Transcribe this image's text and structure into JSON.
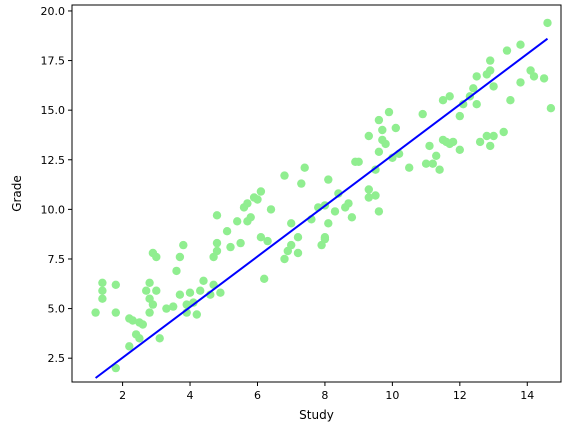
{
  "chart_data": {
    "type": "scatter",
    "title": "",
    "xlabel": "Study",
    "ylabel": "Grade",
    "xlim": [
      0.5,
      15.0
    ],
    "ylim": [
      1.3,
      20.3
    ],
    "xticks": [
      2,
      4,
      6,
      8,
      10,
      12,
      14
    ],
    "yticks": [
      2.5,
      5.0,
      7.5,
      10.0,
      12.5,
      15.0,
      17.5,
      20.0
    ],
    "xtick_labels": [
      "2",
      "4",
      "6",
      "8",
      "10",
      "12",
      "14"
    ],
    "ytick_labels": [
      "2.5",
      "5.0",
      "7.5",
      "10.0",
      "12.5",
      "15.0",
      "17.5",
      "20.0"
    ],
    "grid": false,
    "legend": false,
    "colors": {
      "points": "#90ee90",
      "line": "#0000ff",
      "axes": "#000000"
    },
    "points": [
      [
        1.2,
        4.8
      ],
      [
        1.4,
        6.3
      ],
      [
        1.4,
        5.9
      ],
      [
        1.4,
        5.5
      ],
      [
        1.8,
        6.2
      ],
      [
        1.8,
        4.8
      ],
      [
        1.8,
        2.0
      ],
      [
        2.2,
        4.5
      ],
      [
        2.3,
        4.4
      ],
      [
        2.2,
        3.1
      ],
      [
        2.4,
        3.7
      ],
      [
        2.5,
        3.5
      ],
      [
        2.5,
        4.3
      ],
      [
        2.6,
        4.2
      ],
      [
        2.7,
        5.9
      ],
      [
        2.8,
        6.3
      ],
      [
        2.8,
        5.5
      ],
      [
        2.8,
        4.8
      ],
      [
        2.9,
        7.8
      ],
      [
        3.0,
        7.6
      ],
      [
        2.9,
        5.2
      ],
      [
        3.0,
        5.9
      ],
      [
        3.1,
        3.5
      ],
      [
        3.3,
        5.0
      ],
      [
        3.5,
        5.1
      ],
      [
        3.6,
        6.9
      ],
      [
        3.7,
        7.6
      ],
      [
        3.8,
        8.2
      ],
      [
        3.7,
        5.7
      ],
      [
        3.9,
        5.2
      ],
      [
        3.9,
        4.8
      ],
      [
        4.0,
        5.8
      ],
      [
        4.1,
        5.3
      ],
      [
        4.2,
        4.7
      ],
      [
        4.3,
        5.9
      ],
      [
        4.4,
        6.4
      ],
      [
        4.6,
        5.7
      ],
      [
        4.7,
        6.2
      ],
      [
        4.7,
        7.6
      ],
      [
        4.8,
        8.3
      ],
      [
        4.8,
        9.7
      ],
      [
        4.8,
        7.9
      ],
      [
        4.9,
        5.8
      ],
      [
        5.1,
        8.9
      ],
      [
        5.2,
        8.1
      ],
      [
        5.4,
        9.4
      ],
      [
        5.5,
        8.3
      ],
      [
        5.6,
        10.1
      ],
      [
        5.7,
        9.4
      ],
      [
        5.7,
        10.3
      ],
      [
        5.8,
        9.6
      ],
      [
        5.9,
        10.6
      ],
      [
        6.0,
        10.5
      ],
      [
        6.1,
        10.9
      ],
      [
        6.1,
        8.6
      ],
      [
        6.2,
        6.5
      ],
      [
        6.3,
        8.4
      ],
      [
        6.4,
        10.0
      ],
      [
        6.8,
        11.7
      ],
      [
        6.8,
        7.5
      ],
      [
        6.9,
        7.9
      ],
      [
        7.0,
        8.2
      ],
      [
        7.0,
        9.3
      ],
      [
        7.2,
        8.6
      ],
      [
        7.2,
        7.8
      ],
      [
        7.3,
        11.3
      ],
      [
        7.4,
        12.1
      ],
      [
        7.6,
        9.5
      ],
      [
        7.8,
        10.1
      ],
      [
        7.9,
        8.2
      ],
      [
        8.0,
        8.6
      ],
      [
        8.0,
        8.5
      ],
      [
        8.0,
        10.2
      ],
      [
        8.1,
        11.5
      ],
      [
        8.1,
        9.3
      ],
      [
        8.3,
        9.9
      ],
      [
        8.4,
        10.8
      ],
      [
        8.6,
        10.1
      ],
      [
        8.7,
        10.3
      ],
      [
        8.8,
        9.6
      ],
      [
        8.9,
        12.4
      ],
      [
        9.0,
        12.4
      ],
      [
        9.3,
        10.6
      ],
      [
        9.3,
        11.0
      ],
      [
        9.3,
        13.7
      ],
      [
        9.5,
        12.0
      ],
      [
        9.5,
        10.7
      ],
      [
        9.6,
        9.9
      ],
      [
        9.6,
        14.5
      ],
      [
        9.6,
        12.9
      ],
      [
        9.7,
        14.0
      ],
      [
        9.7,
        13.5
      ],
      [
        9.8,
        13.3
      ],
      [
        9.9,
        14.9
      ],
      [
        10.0,
        12.6
      ],
      [
        10.1,
        14.1
      ],
      [
        10.2,
        12.8
      ],
      [
        10.5,
        12.1
      ],
      [
        10.9,
        14.8
      ],
      [
        11.0,
        12.3
      ],
      [
        11.1,
        13.2
      ],
      [
        11.2,
        12.3
      ],
      [
        11.3,
        12.7
      ],
      [
        11.4,
        12.0
      ],
      [
        11.5,
        13.5
      ],
      [
        11.5,
        15.5
      ],
      [
        11.6,
        13.4
      ],
      [
        11.7,
        15.7
      ],
      [
        11.7,
        13.3
      ],
      [
        11.8,
        13.4
      ],
      [
        12.0,
        13.0
      ],
      [
        12.0,
        14.7
      ],
      [
        12.1,
        15.3
      ],
      [
        12.3,
        15.7
      ],
      [
        12.4,
        16.1
      ],
      [
        12.5,
        16.7
      ],
      [
        12.5,
        15.3
      ],
      [
        12.6,
        13.4
      ],
      [
        12.8,
        16.8
      ],
      [
        12.9,
        17.0
      ],
      [
        12.9,
        17.5
      ],
      [
        12.8,
        13.7
      ],
      [
        12.9,
        13.2
      ],
      [
        13.0,
        13.7
      ],
      [
        13.0,
        16.2
      ],
      [
        13.3,
        13.9
      ],
      [
        13.4,
        18.0
      ],
      [
        13.5,
        15.5
      ],
      [
        13.8,
        18.3
      ],
      [
        13.8,
        16.4
      ],
      [
        14.1,
        17.0
      ],
      [
        14.2,
        16.7
      ],
      [
        14.5,
        16.6
      ],
      [
        14.6,
        19.4
      ],
      [
        14.7,
        15.1
      ]
    ],
    "regression_line": {
      "x": [
        1.2,
        14.6
      ],
      "y": [
        1.5,
        18.6
      ]
    }
  }
}
